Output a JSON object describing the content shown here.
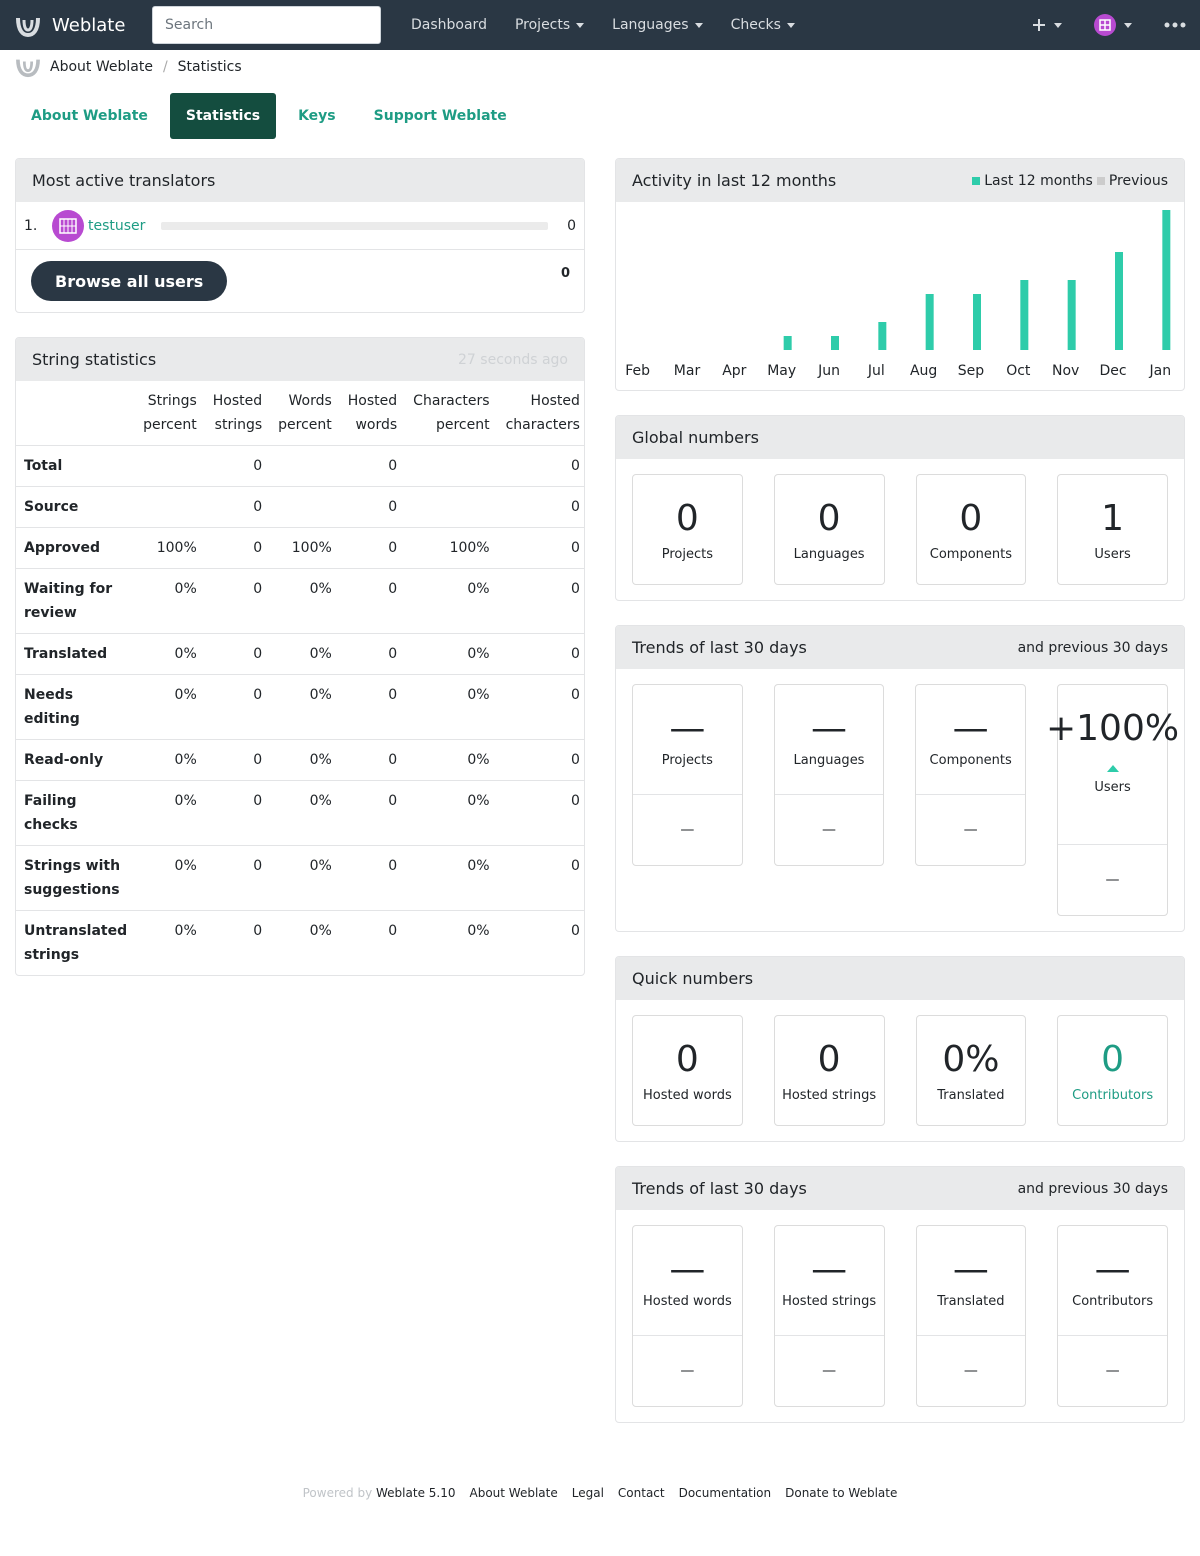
{
  "navbar": {
    "brand": "Weblate",
    "search_placeholder": "Search",
    "links": [
      "Dashboard",
      "Projects",
      "Languages",
      "Checks"
    ],
    "add_icon": "plus-icon",
    "menu_icon": "ellipsis-icon"
  },
  "breadcrumb": {
    "items": [
      "About Weblate",
      "Statistics"
    ]
  },
  "tabs": [
    "About Weblate",
    "Statistics",
    "Keys",
    "Support Weblate"
  ],
  "translators": {
    "title": "Most active translators",
    "rows": [
      {
        "rank": "1.",
        "user": "testuser",
        "count": "0",
        "fraction": 0
      }
    ],
    "browse_label": "Browse all users",
    "total": "0"
  },
  "string_stats": {
    "title": "String statistics",
    "updated": "27 seconds ago",
    "headers": [
      [
        "Strings",
        "percent"
      ],
      [
        "Hosted",
        "strings"
      ],
      [
        "Words",
        "percent"
      ],
      [
        "Hosted",
        "words"
      ],
      [
        "Characters",
        "percent"
      ],
      [
        "Hosted",
        "characters"
      ]
    ],
    "rows": [
      {
        "label": [
          "Total"
        ],
        "values": [
          "",
          "0",
          "",
          "0",
          "",
          "0"
        ]
      },
      {
        "label": [
          "Source"
        ],
        "values": [
          "",
          "0",
          "",
          "0",
          "",
          "0"
        ]
      },
      {
        "label": [
          "Approved"
        ],
        "values": [
          "100%",
          "0",
          "100%",
          "0",
          "100%",
          "0"
        ]
      },
      {
        "label": [
          "Waiting for",
          "review"
        ],
        "values": [
          "0%",
          "0",
          "0%",
          "0",
          "0%",
          "0"
        ]
      },
      {
        "label": [
          "Translated"
        ],
        "values": [
          "0%",
          "0",
          "0%",
          "0",
          "0%",
          "0"
        ]
      },
      {
        "label": [
          "Needs editing"
        ],
        "values": [
          "0%",
          "0",
          "0%",
          "0",
          "0%",
          "0"
        ]
      },
      {
        "label": [
          "Read-only"
        ],
        "values": [
          "0%",
          "0",
          "0%",
          "0",
          "0%",
          "0"
        ]
      },
      {
        "label": [
          "Failing",
          "checks"
        ],
        "values": [
          "0%",
          "0",
          "0%",
          "0",
          "0%",
          "0"
        ]
      },
      {
        "label": [
          "Strings with",
          "suggestions"
        ],
        "values": [
          "0%",
          "0",
          "0%",
          "0",
          "0%",
          "0"
        ]
      },
      {
        "label": [
          "Untranslated",
          "strings"
        ],
        "values": [
          "0%",
          "0",
          "0%",
          "0",
          "0%",
          "0"
        ]
      }
    ]
  },
  "activity": {
    "title": "Activity in last 12 months",
    "legend_current": "Last 12 months",
    "legend_previous": "Previous",
    "colors": {
      "current": "#2eccaa",
      "previous": "#cccccc"
    }
  },
  "chart_data": {
    "type": "bar",
    "categories": [
      "Feb",
      "Mar",
      "Apr",
      "May",
      "Jun",
      "Jul",
      "Aug",
      "Sep",
      "Oct",
      "Nov",
      "Dec",
      "Jan"
    ],
    "series": [
      {
        "name": "Last 12 months",
        "values": [
          0,
          0,
          0,
          1,
          1,
          2,
          4,
          4,
          5,
          5,
          7,
          10
        ]
      },
      {
        "name": "Previous",
        "values": [
          0,
          0,
          0,
          0,
          0,
          0,
          0,
          0,
          0,
          0,
          0,
          0
        ]
      }
    ],
    "ylim": [
      0,
      10
    ]
  },
  "global_numbers": {
    "title": "Global numbers",
    "items": [
      {
        "value": "0",
        "label": "Projects"
      },
      {
        "value": "0",
        "label": "Languages"
      },
      {
        "value": "0",
        "label": "Components"
      },
      {
        "value": "1",
        "label": "Users"
      }
    ]
  },
  "trends1": {
    "title": "Trends of last 30 days",
    "subtitle": "and previous 30 days",
    "items": [
      {
        "value": "—",
        "label": "Projects",
        "prev": "—"
      },
      {
        "value": "—",
        "label": "Languages",
        "prev": "—"
      },
      {
        "value": "—",
        "label": "Components",
        "prev": "—"
      },
      {
        "value": "+100%",
        "label": "Users",
        "prev": "—",
        "trend": "up-icon"
      }
    ]
  },
  "quick_numbers": {
    "title": "Quick numbers",
    "items": [
      {
        "value": "0",
        "label": "Hosted words"
      },
      {
        "value": "0",
        "label": "Hosted strings"
      },
      {
        "value": "0%",
        "label": "Translated"
      },
      {
        "value": "0",
        "label": "Contributors"
      }
    ]
  },
  "trends2": {
    "title": "Trends of last 30 days",
    "subtitle": "and previous 30 days",
    "items": [
      {
        "value": "—",
        "label": "Hosted words",
        "prev": "—"
      },
      {
        "value": "—",
        "label": "Hosted strings",
        "prev": "—"
      },
      {
        "value": "—",
        "label": "Translated",
        "prev": "—"
      },
      {
        "value": "—",
        "label": "Contributors",
        "prev": "—"
      }
    ]
  },
  "footer": {
    "powered_by": "Powered by",
    "links": [
      "Weblate 5.10",
      "About Weblate",
      "Legal",
      "Contact",
      "Documentation",
      "Donate to Weblate"
    ]
  }
}
